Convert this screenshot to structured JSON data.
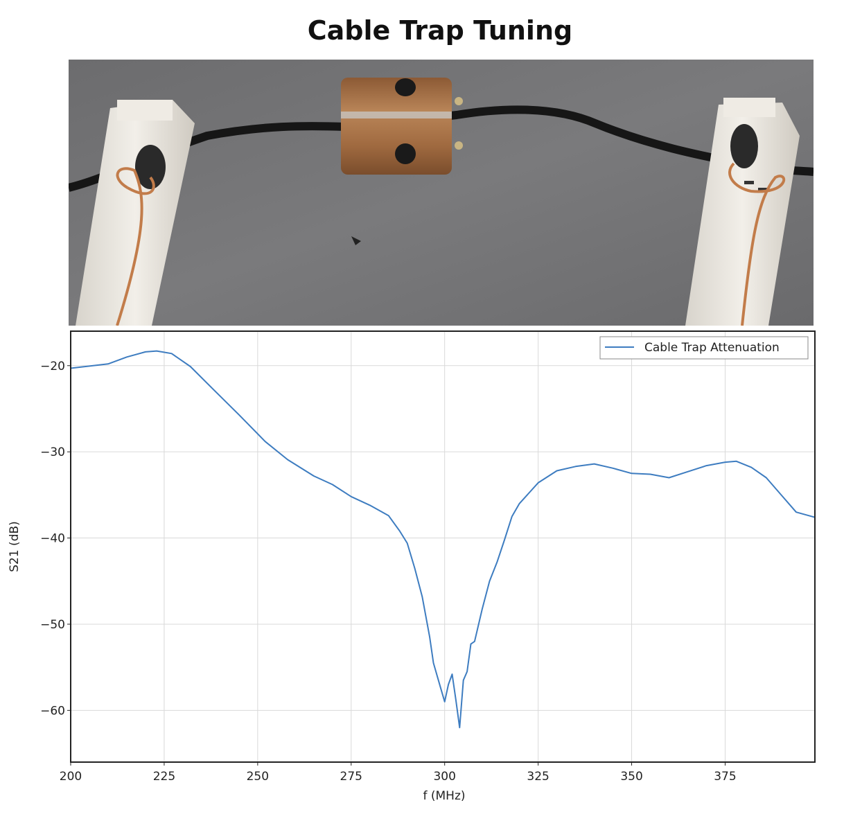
{
  "title": "Cable Trap Tuning",
  "colors": {
    "series": "#3d7cc0",
    "grid": "#d9d9d9",
    "frame": "#222222",
    "background": "#6e6e6e",
    "trap": "#a8744a",
    "clip": "#e8e4dc",
    "cable": "#1a1a1a",
    "copper": "#c27c4a"
  },
  "photo": {
    "subject": "cable trap on coaxial cable between two current probe clamps"
  },
  "chart_data": {
    "type": "line",
    "title": "",
    "xlabel": "f (MHz)",
    "ylabel": "S21 (dB)",
    "xlim": [
      200,
      399
    ],
    "ylim": [
      -66,
      -16
    ],
    "xticks": [
      200,
      225,
      250,
      275,
      300,
      325,
      350,
      375
    ],
    "yticks": [
      -20,
      -30,
      -40,
      -50,
      -60
    ],
    "grid": true,
    "legend": {
      "position": "top-right"
    },
    "series": [
      {
        "name": "Cable Trap Attenuation",
        "color": "#3d7cc0",
        "x": [
          200,
          210,
          215,
          220,
          223,
          227,
          232,
          238,
          245,
          252,
          258,
          265,
          270,
          275,
          280,
          285,
          288,
          290,
          292,
          294,
          296,
          297,
          298,
          299,
          300,
          301,
          302,
          303,
          304,
          305,
          306,
          307,
          308,
          310,
          312,
          314,
          316,
          318,
          320,
          325,
          330,
          335,
          340,
          345,
          350,
          355,
          360,
          365,
          370,
          375,
          378,
          382,
          386,
          390,
          394,
          399
        ],
        "y": [
          -20.3,
          -19.8,
          -19.0,
          -18.4,
          -18.3,
          -18.6,
          -20.1,
          -22.7,
          -25.7,
          -28.8,
          -30.9,
          -32.8,
          -33.8,
          -35.2,
          -36.2,
          -37.4,
          -39.2,
          -40.6,
          -43.5,
          -46.8,
          -51.5,
          -54.5,
          -56.0,
          -57.5,
          -59.0,
          -57.0,
          -55.8,
          -58.8,
          -62.0,
          -56.5,
          -55.5,
          -52.3,
          -52.0,
          -48.3,
          -45.0,
          -42.8,
          -40.2,
          -37.5,
          -36.0,
          -33.6,
          -32.2,
          -31.7,
          -31.4,
          -31.9,
          -32.5,
          -32.6,
          -33.0,
          -32.3,
          -31.6,
          -31.2,
          -31.1,
          -31.8,
          -33.0,
          -35.0,
          -37.0,
          -37.6
        ]
      }
    ]
  }
}
